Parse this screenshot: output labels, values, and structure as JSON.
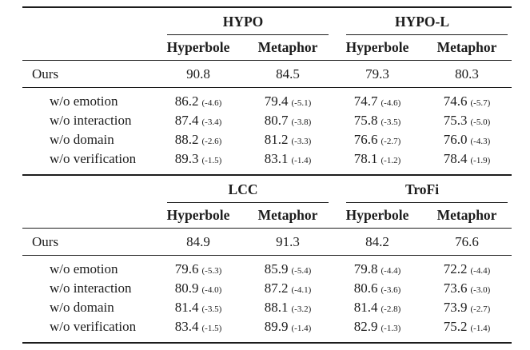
{
  "page": {
    "background_color": "#ffffff",
    "text_color": "#1c1c1c",
    "rule_color": "#1c1c1c"
  },
  "tables": [
    {
      "name": "hypo-section",
      "groups": [
        {
          "label": "HYPO"
        },
        {
          "label": "HYPO-L"
        }
      ],
      "col_headers": [
        "Hyperbole",
        "Metaphor",
        "Hyperbole",
        "Metaphor"
      ],
      "ours": {
        "label": "Ours",
        "values": [
          "90.8",
          "84.5",
          "79.3",
          "80.3"
        ]
      },
      "ablations": [
        {
          "label": "w/o emotion",
          "cells": [
            {
              "value": "86.2",
              "delta": "(-4.6)"
            },
            {
              "value": "79.4",
              "delta": "(-5.1)"
            },
            {
              "value": "74.7",
              "delta": "(-4.6)"
            },
            {
              "value": "74.6",
              "delta": "(-5.7)"
            }
          ]
        },
        {
          "label": "w/o interaction",
          "cells": [
            {
              "value": "87.4",
              "delta": "(-3.4)"
            },
            {
              "value": "80.7",
              "delta": "(-3.8)"
            },
            {
              "value": "75.8",
              "delta": "(-3.5)"
            },
            {
              "value": "75.3",
              "delta": "(-5.0)"
            }
          ]
        },
        {
          "label": "w/o domain",
          "cells": [
            {
              "value": "88.2",
              "delta": "(-2.6)"
            },
            {
              "value": "81.2",
              "delta": "(-3.3)"
            },
            {
              "value": "76.6",
              "delta": "(-2.7)"
            },
            {
              "value": "76.0",
              "delta": "(-4.3)"
            }
          ]
        },
        {
          "label": "w/o verification",
          "cells": [
            {
              "value": "89.3",
              "delta": "(-1.5)"
            },
            {
              "value": "83.1",
              "delta": "(-1.4)"
            },
            {
              "value": "78.1",
              "delta": "(-1.2)"
            },
            {
              "value": "78.4",
              "delta": "(-1.9)"
            }
          ]
        }
      ]
    },
    {
      "name": "lcc-trofi-section",
      "groups": [
        {
          "label": "LCC"
        },
        {
          "label": "TroFi"
        }
      ],
      "col_headers": [
        "Hyperbole",
        "Metaphor",
        "Hyperbole",
        "Metaphor"
      ],
      "ours": {
        "label": "Ours",
        "values": [
          "84.9",
          "91.3",
          "84.2",
          "76.6"
        ]
      },
      "ablations": [
        {
          "label": "w/o emotion",
          "cells": [
            {
              "value": "79.6",
              "delta": "(-5.3)"
            },
            {
              "value": "85.9",
              "delta": "(-5.4)"
            },
            {
              "value": "79.8",
              "delta": "(-4.4)"
            },
            {
              "value": "72.2",
              "delta": "(-4.4)"
            }
          ]
        },
        {
          "label": "w/o interaction",
          "cells": [
            {
              "value": "80.9",
              "delta": "(-4.0)"
            },
            {
              "value": "87.2",
              "delta": "(-4.1)"
            },
            {
              "value": "80.6",
              "delta": "(-3.6)"
            },
            {
              "value": "73.6",
              "delta": "(-3.0)"
            }
          ]
        },
        {
          "label": "w/o domain",
          "cells": [
            {
              "value": "81.4",
              "delta": "(-3.5)"
            },
            {
              "value": "88.1",
              "delta": "(-3.2)"
            },
            {
              "value": "81.4",
              "delta": "(-2.8)"
            },
            {
              "value": "73.9",
              "delta": "(-2.7)"
            }
          ]
        },
        {
          "label": "w/o verification",
          "cells": [
            {
              "value": "83.4",
              "delta": "(-1.5)"
            },
            {
              "value": "89.9",
              "delta": "(-1.4)"
            },
            {
              "value": "82.9",
              "delta": "(-1.3)"
            },
            {
              "value": "75.2",
              "delta": "(-1.4)"
            }
          ]
        }
      ]
    }
  ]
}
